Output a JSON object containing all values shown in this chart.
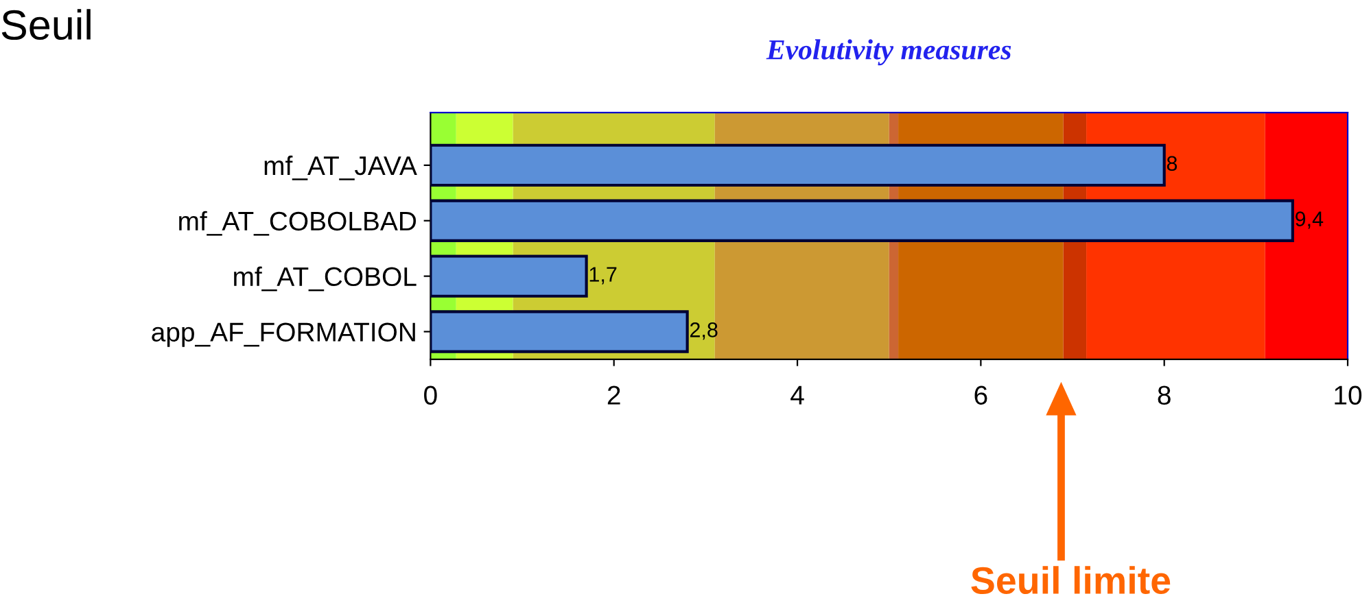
{
  "chart_data": {
    "type": "bar",
    "orientation": "horizontal",
    "title": "Evolutivity measures",
    "categories": [
      "mf_AT_JAVA",
      "mf_AT_COBOLBAD",
      "mf_AT_COBOL",
      "app_AF_FORMATION"
    ],
    "values": [
      8,
      9.4,
      1.7,
      2.8
    ],
    "color": "#5b8fd8",
    "value_labels": [
      "8",
      "9,4",
      "1,7",
      "2,8"
    ],
    "xlim": [
      0,
      10
    ],
    "xticks": [
      0,
      2,
      4,
      6,
      8,
      10
    ],
    "grid": false,
    "legend": false,
    "bands": [
      {
        "axis": "x",
        "from": 0,
        "to": 0.28,
        "color": "#99ff33"
      },
      {
        "axis": "x",
        "from": 0.28,
        "to": 0.9,
        "color": "#ccff33"
      },
      {
        "axis": "x",
        "from": 0.9,
        "to": 3.1,
        "color": "#cccc33"
      },
      {
        "axis": "x",
        "from": 3.1,
        "to": 5.0,
        "color": "#cc9933"
      },
      {
        "axis": "x",
        "from": 5.0,
        "to": 5.1,
        "color": "#cc6633"
      },
      {
        "axis": "x",
        "from": 5.1,
        "to": 6.9,
        "color": "#cc6600"
      },
      {
        "axis": "x",
        "from": 6.9,
        "to": 7.15,
        "color": "#cc3300"
      },
      {
        "axis": "x",
        "from": 7.15,
        "to": 9.1,
        "color": "#ff3300"
      },
      {
        "axis": "x",
        "from": 9.1,
        "to": 10,
        "color": "#ff0000"
      }
    ],
    "annotations": [
      "Seuil",
      "Seuil limite"
    ]
  }
}
